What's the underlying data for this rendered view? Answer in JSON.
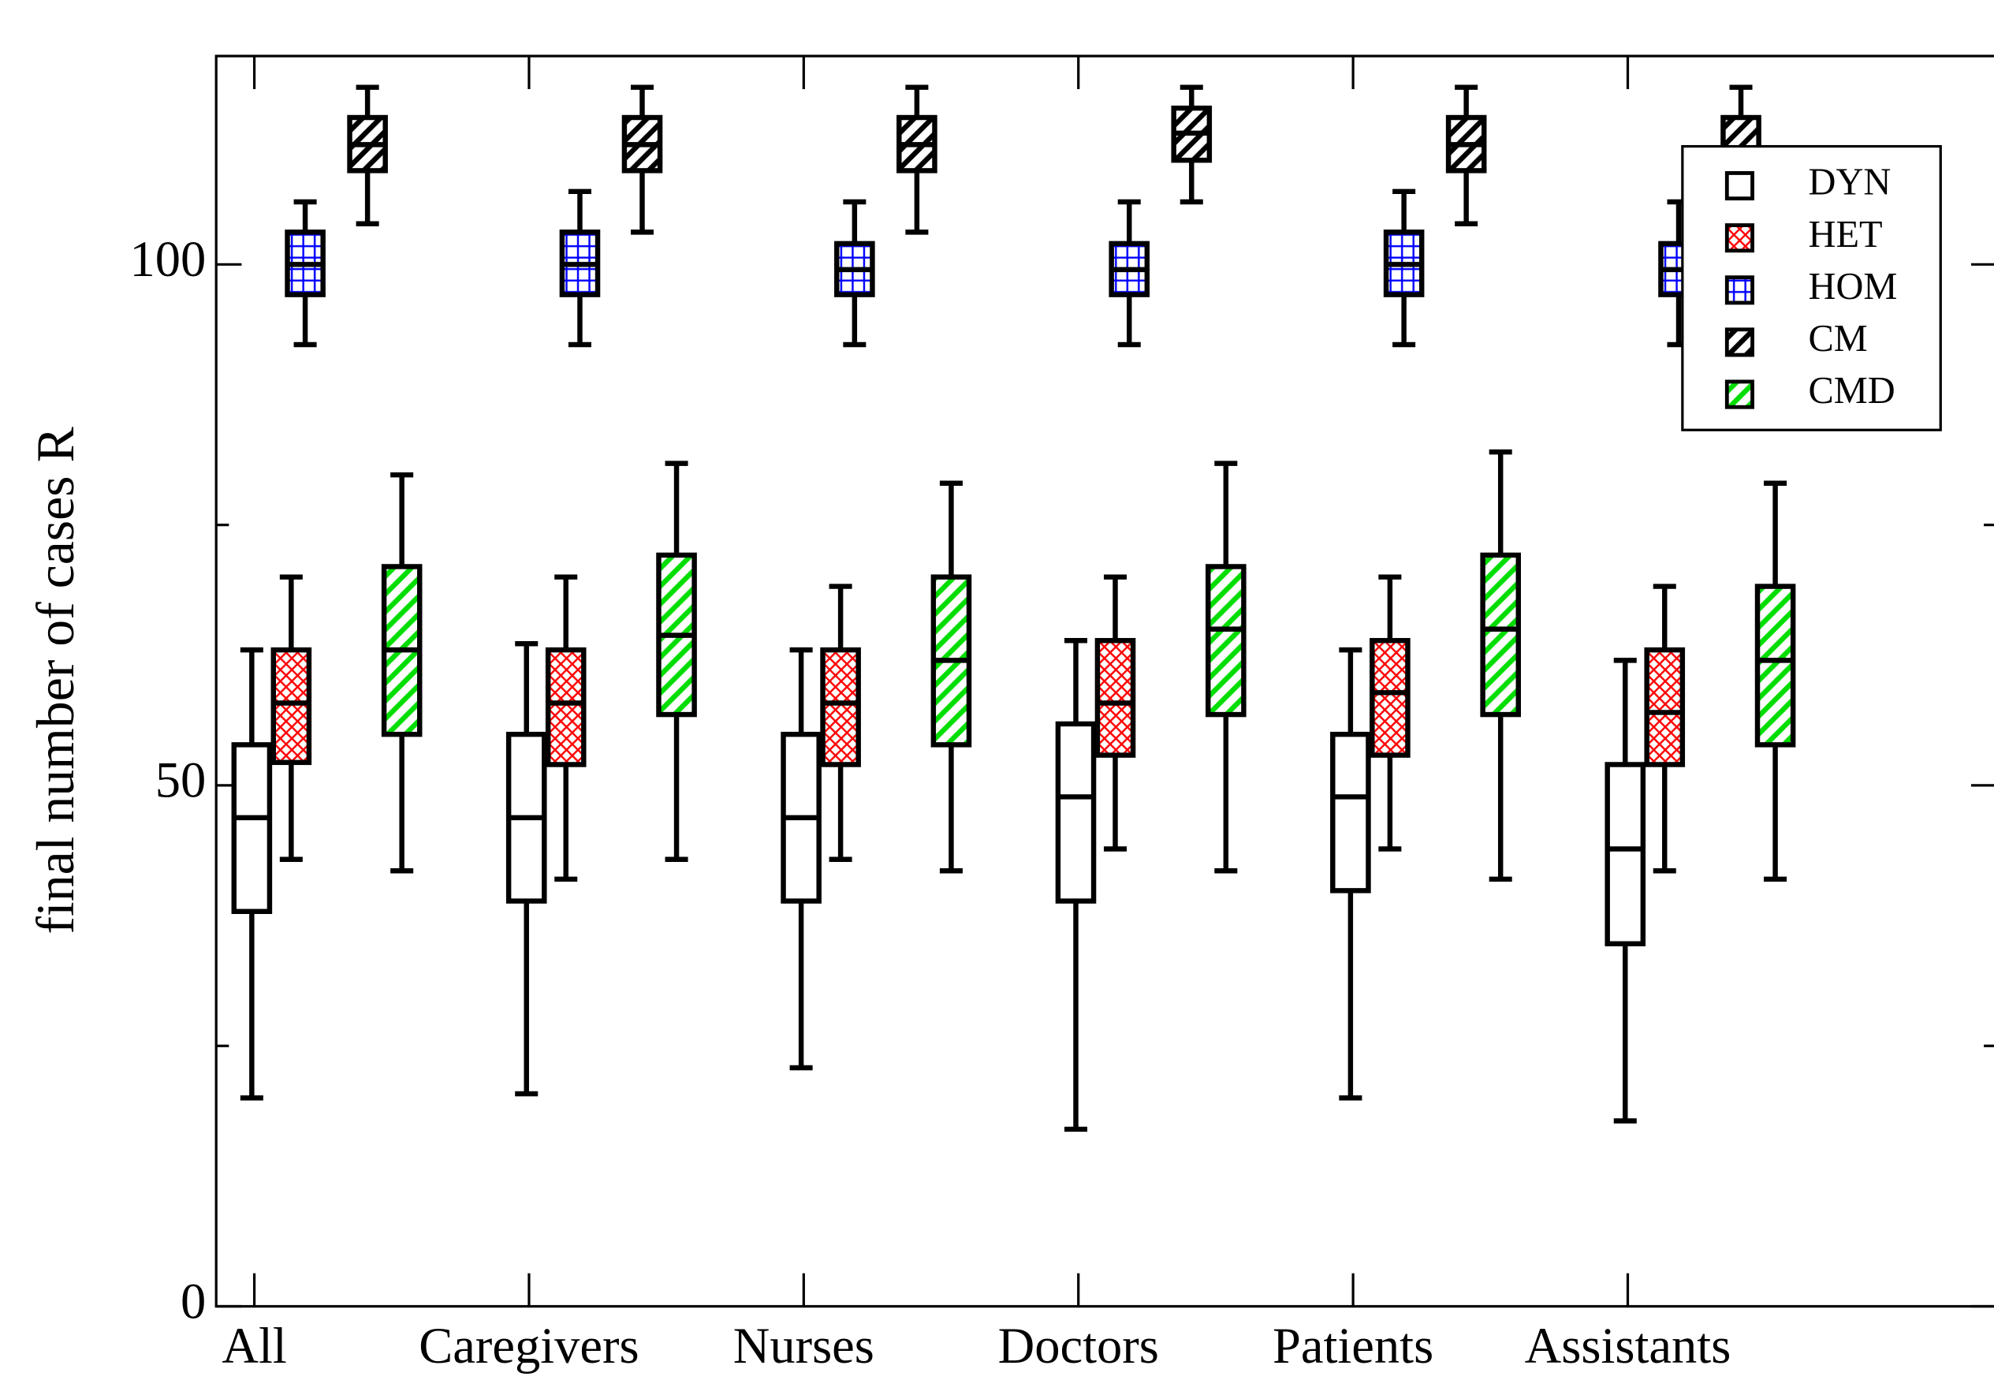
{
  "chart_data": {
    "type": "box",
    "y_label": "final number of cases R",
    "categories": [
      "All",
      "Caregivers",
      "Nurses",
      "Doctors",
      "Patients",
      "Assistants"
    ],
    "ylim": [
      0,
      120
    ],
    "yticks": [
      0,
      50,
      100
    ],
    "minor_yticks": [
      25,
      75
    ],
    "legend": "upper right",
    "series": [
      {
        "name": "DYN",
        "color": "#ffffff",
        "pattern": "none",
        "min": [
          20.0,
          20.4,
          22.9,
          17.0,
          20.0,
          17.8
        ],
        "q1": [
          37.9,
          38.9,
          38.9,
          38.9,
          39.9,
          34.8
        ],
        "median": [
          46.9,
          46.9,
          46.9,
          48.9,
          48.9,
          43.9
        ],
        "q3": [
          53.9,
          54.9,
          54.9,
          55.9,
          54.9,
          52.0
        ],
        "max": [
          63.0,
          63.6,
          63.0,
          63.9,
          63.0,
          62.0
        ]
      },
      {
        "name": "HET",
        "color": "#ff0000",
        "pattern": "crosshatch",
        "min": [
          42.9,
          41.0,
          42.9,
          43.9,
          43.9,
          41.8
        ],
        "q1": [
          52.2,
          52.0,
          52.0,
          52.9,
          52.9,
          52.0
        ],
        "median": [
          57.9,
          57.9,
          57.9,
          57.9,
          58.9,
          57.0
        ],
        "q3": [
          63.0,
          63.0,
          63.0,
          63.9,
          63.9,
          63.0
        ],
        "max": [
          70.0,
          70.0,
          69.1,
          70.0,
          70.0,
          69.1
        ]
      },
      {
        "name": "HOM",
        "color": "#0000ff",
        "pattern": "grid",
        "min": [
          92.3,
          92.3,
          92.3,
          92.3,
          92.3,
          92.3
        ],
        "q1": [
          97.1,
          97.1,
          97.1,
          97.1,
          97.1,
          97.1
        ],
        "median": [
          100,
          100,
          99.5,
          99.5,
          100,
          99.5
        ],
        "q3": [
          103.1,
          103.1,
          102.0,
          102.0,
          103.1,
          102.0
        ],
        "max": [
          106.0,
          107.0,
          106.0,
          106.0,
          107.0,
          106.0
        ]
      },
      {
        "name": "CM",
        "color": "#000000",
        "pattern": "hatch",
        "min": [
          103.9,
          103.1,
          103.1,
          106.0,
          103.9,
          103.1
        ],
        "q1": [
          109.0,
          109.0,
          109.0,
          110.0,
          109.0,
          108.1
        ],
        "median": [
          111.5,
          111.5,
          111.5,
          112.6,
          111.5,
          111.0
        ],
        "q3": [
          114.1,
          114.1,
          114.1,
          115.0,
          114.1,
          114.1
        ],
        "max": [
          117.0,
          117.0,
          117.0,
          117.0,
          117.0,
          117.0
        ]
      },
      {
        "name": "CMD",
        "color": "#00dd00",
        "pattern": "hatch",
        "min": [
          41.8,
          42.9,
          41.8,
          41.8,
          41.0,
          41.0
        ],
        "q1": [
          54.9,
          56.8,
          53.9,
          56.8,
          56.8,
          53.9
        ],
        "median": [
          63.0,
          64.4,
          62.0,
          65.0,
          65.0,
          62.0
        ],
        "q3": [
          71.0,
          72.1,
          70.0,
          71.0,
          72.1,
          69.1
        ],
        "max": [
          79.8,
          80.9,
          79.0,
          80.9,
          82.0,
          79.0
        ]
      }
    ]
  }
}
